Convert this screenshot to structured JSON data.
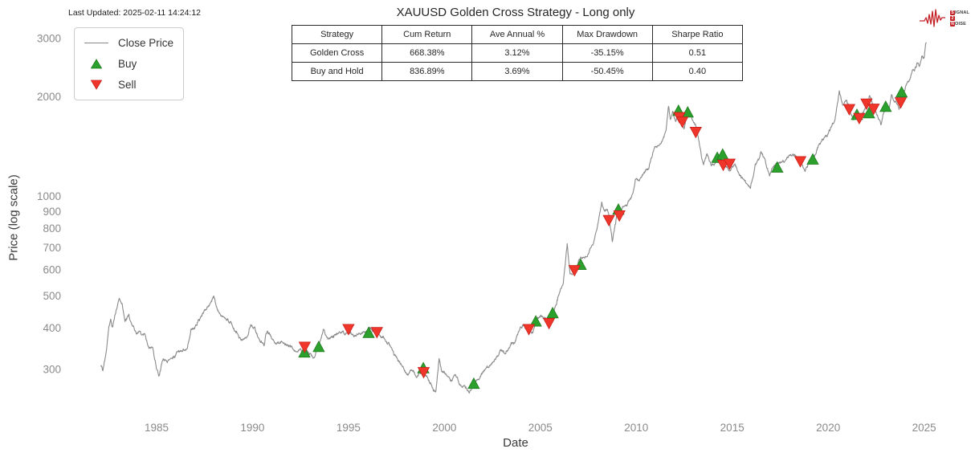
{
  "header": {
    "last_updated": "Last Updated: 2025-02-11 14:24:12",
    "title": "XAUUSD Golden Cross Strategy - Long only"
  },
  "legend": {
    "items": [
      {
        "label": "Close Price",
        "glyph": "line"
      },
      {
        "label": "Buy",
        "glyph": "triangle-up"
      },
      {
        "label": "Sell",
        "glyph": "triangle-down"
      }
    ]
  },
  "stats_table": {
    "columns": [
      "Strategy",
      "Cum Return",
      "Ave Annual %",
      "Max Drawdown",
      "Sharpe Ratio"
    ],
    "rows": [
      [
        "Golden Cross",
        "668.38%",
        "3.12%",
        "-35.15%",
        "0.51"
      ],
      [
        "Buy and Hold",
        "836.89%",
        "3.69%",
        "-50.45%",
        "0.40"
      ]
    ]
  },
  "logo": {
    "rows": [
      {
        "badge": "S",
        "rest": "IGNAL"
      },
      {
        "badge": "2",
        "rest": ""
      },
      {
        "badge": "N",
        "rest": "OISE"
      }
    ]
  },
  "colors": {
    "close_line": "#8a8a8a",
    "buy_green": "#2ca02c",
    "buy_green_edge": "#1d7a1d",
    "sell_red": "#f0352b",
    "sell_red_edge": "#c9201a",
    "tick_label": "#8a8a8a",
    "logo_red": "#c42127"
  },
  "chart_data": {
    "type": "line",
    "title": "XAUUSD Golden Cross Strategy - Long only",
    "xlabel": "Date",
    "ylabel": "Price (log scale)",
    "y_scale": "log",
    "grid": false,
    "legend_position": "upper left",
    "x_ticks": [
      1985,
      1990,
      1995,
      2000,
      2005,
      2010,
      2015,
      2020,
      2025
    ],
    "y_ticks": [
      300,
      400,
      500,
      600,
      700,
      800,
      900,
      1000,
      2000,
      3000
    ],
    "xlim": [
      1981.8,
      2026.5
    ],
    "ylim": [
      230,
      3300
    ],
    "series": [
      {
        "name": "Close Price",
        "points": [
          [
            1982.1,
            310
          ],
          [
            1982.2,
            297
          ],
          [
            1982.35,
            330
          ],
          [
            1982.5,
            400
          ],
          [
            1982.6,
            430
          ],
          [
            1982.7,
            402
          ],
          [
            1982.85,
            448
          ],
          [
            1983.05,
            497
          ],
          [
            1983.2,
            470
          ],
          [
            1983.35,
            420
          ],
          [
            1983.55,
            430
          ],
          [
            1983.75,
            405
          ],
          [
            1983.95,
            383
          ],
          [
            1984.15,
            390
          ],
          [
            1984.4,
            378
          ],
          [
            1984.6,
            347
          ],
          [
            1984.8,
            342
          ],
          [
            1985.0,
            302
          ],
          [
            1985.15,
            292
          ],
          [
            1985.35,
            322
          ],
          [
            1985.6,
            318
          ],
          [
            1985.85,
            327
          ],
          [
            1986.1,
            340
          ],
          [
            1986.35,
            342
          ],
          [
            1986.6,
            348
          ],
          [
            1986.8,
            390
          ],
          [
            1986.95,
            400
          ],
          [
            1987.2,
            420
          ],
          [
            1987.45,
            450
          ],
          [
            1987.65,
            460
          ],
          [
            1987.85,
            478
          ],
          [
            1987.98,
            496
          ],
          [
            1988.15,
            455
          ],
          [
            1988.4,
            438
          ],
          [
            1988.65,
            428
          ],
          [
            1988.9,
            415
          ],
          [
            1989.15,
            388
          ],
          [
            1989.4,
            372
          ],
          [
            1989.65,
            367
          ],
          [
            1989.9,
            405
          ],
          [
            1990.1,
            398
          ],
          [
            1990.35,
            370
          ],
          [
            1990.6,
            355
          ],
          [
            1990.75,
            388
          ],
          [
            1990.95,
            380
          ],
          [
            1991.2,
            362
          ],
          [
            1991.45,
            368
          ],
          [
            1991.7,
            358
          ],
          [
            1991.95,
            355
          ],
          [
            1992.2,
            340
          ],
          [
            1992.5,
            342
          ],
          [
            1992.72,
            350
          ],
          [
            1992.95,
            335
          ],
          [
            1993.2,
            330
          ],
          [
            1993.45,
            352
          ],
          [
            1993.7,
            392
          ],
          [
            1993.95,
            372
          ],
          [
            1994.2,
            382
          ],
          [
            1994.5,
            387
          ],
          [
            1994.8,
            384
          ],
          [
            1995.05,
            388
          ],
          [
            1995.3,
            382
          ],
          [
            1995.6,
            386
          ],
          [
            1995.9,
            388
          ],
          [
            1996.1,
            396
          ],
          [
            1996.35,
            393
          ],
          [
            1996.6,
            385
          ],
          [
            1996.9,
            368
          ],
          [
            1997.2,
            348
          ],
          [
            1997.5,
            324
          ],
          [
            1997.8,
            306
          ],
          [
            1998.05,
            292
          ],
          [
            1998.3,
            300
          ],
          [
            1998.6,
            288
          ],
          [
            1998.9,
            298
          ],
          [
            1999.1,
            285
          ],
          [
            1999.4,
            260
          ],
          [
            1999.55,
            256
          ],
          [
            1999.72,
            326
          ],
          [
            1999.85,
            300
          ],
          [
            2000.1,
            288
          ],
          [
            2000.35,
            279
          ],
          [
            2000.6,
            288
          ],
          [
            2000.9,
            268
          ],
          [
            2001.15,
            262
          ],
          [
            2001.3,
            256
          ],
          [
            2001.55,
            272
          ],
          [
            2001.8,
            278
          ],
          [
            2002.05,
            297
          ],
          [
            2002.35,
            308
          ],
          [
            2002.65,
            320
          ],
          [
            2002.95,
            342
          ],
          [
            2003.2,
            336
          ],
          [
            2003.45,
            352
          ],
          [
            2003.7,
            368
          ],
          [
            2003.95,
            398
          ],
          [
            2004.15,
            408
          ],
          [
            2004.4,
            396
          ],
          [
            2004.6,
            390
          ],
          [
            2004.8,
            425
          ],
          [
            2005.0,
            428
          ],
          [
            2005.25,
            424
          ],
          [
            2005.45,
            418
          ],
          [
            2005.65,
            440
          ],
          [
            2005.95,
            500
          ],
          [
            2006.2,
            560
          ],
          [
            2006.4,
            715
          ],
          [
            2006.55,
            585
          ],
          [
            2006.8,
            600
          ],
          [
            2007.0,
            640
          ],
          [
            2007.25,
            655
          ],
          [
            2007.5,
            665
          ],
          [
            2007.75,
            720
          ],
          [
            2007.95,
            800
          ],
          [
            2008.2,
            975
          ],
          [
            2008.35,
            900
          ],
          [
            2008.5,
            930
          ],
          [
            2008.6,
            850
          ],
          [
            2008.75,
            740
          ],
          [
            2008.85,
            800
          ],
          [
            2009.0,
            880
          ],
          [
            2009.1,
            895
          ],
          [
            2009.3,
            930
          ],
          [
            2009.5,
            940
          ],
          [
            2009.75,
            1000
          ],
          [
            2009.95,
            1120
          ],
          [
            2010.15,
            1110
          ],
          [
            2010.4,
            1180
          ],
          [
            2010.65,
            1240
          ],
          [
            2010.9,
            1380
          ],
          [
            2011.1,
            1400
          ],
          [
            2011.35,
            1480
          ],
          [
            2011.55,
            1590
          ],
          [
            2011.68,
            1890
          ],
          [
            2011.78,
            1700
          ],
          [
            2011.9,
            1780
          ],
          [
            2012.05,
            1660
          ],
          [
            2012.2,
            1780
          ],
          [
            2012.35,
            1670
          ],
          [
            2012.5,
            1600
          ],
          [
            2012.65,
            1780
          ],
          [
            2012.8,
            1740
          ],
          [
            2013.0,
            1680
          ],
          [
            2013.15,
            1590
          ],
          [
            2013.3,
            1420
          ],
          [
            2013.5,
            1230
          ],
          [
            2013.7,
            1320
          ],
          [
            2013.9,
            1250
          ],
          [
            2014.1,
            1240
          ],
          [
            2014.25,
            1310
          ],
          [
            2014.4,
            1290
          ],
          [
            2014.55,
            1260
          ],
          [
            2014.75,
            1230
          ],
          [
            2014.9,
            1210
          ],
          [
            2015.1,
            1260
          ],
          [
            2015.3,
            1180
          ],
          [
            2015.55,
            1130
          ],
          [
            2015.75,
            1100
          ],
          [
            2015.95,
            1060
          ],
          [
            2016.2,
            1240
          ],
          [
            2016.5,
            1360
          ],
          [
            2016.75,
            1260
          ],
          [
            2016.95,
            1150
          ],
          [
            2017.2,
            1240
          ],
          [
            2017.45,
            1260
          ],
          [
            2017.7,
            1290
          ],
          [
            2017.95,
            1320
          ],
          [
            2018.15,
            1340
          ],
          [
            2018.4,
            1300
          ],
          [
            2018.6,
            1270
          ],
          [
            2018.8,
            1190
          ],
          [
            2019.0,
            1290
          ],
          [
            2019.25,
            1300
          ],
          [
            2019.5,
            1420
          ],
          [
            2019.75,
            1500
          ],
          [
            2019.95,
            1520
          ],
          [
            2020.15,
            1590
          ],
          [
            2020.35,
            1720
          ],
          [
            2020.58,
            2060
          ],
          [
            2020.75,
            1900
          ],
          [
            2020.95,
            1950
          ],
          [
            2021.1,
            1840
          ],
          [
            2021.3,
            1720
          ],
          [
            2021.5,
            1790
          ],
          [
            2021.65,
            1750
          ],
          [
            2021.85,
            1800
          ],
          [
            2022.0,
            1910
          ],
          [
            2022.15,
            2030
          ],
          [
            2022.3,
            1930
          ],
          [
            2022.5,
            1800
          ],
          [
            2022.75,
            1625
          ],
          [
            2022.9,
            1780
          ],
          [
            2023.05,
            1870
          ],
          [
            2023.15,
            1820
          ],
          [
            2023.3,
            1990
          ],
          [
            2023.45,
            1940
          ],
          [
            2023.6,
            1915
          ],
          [
            2023.7,
            1830
          ],
          [
            2023.85,
            2040
          ],
          [
            2023.95,
            2090
          ],
          [
            2024.1,
            2180
          ],
          [
            2024.25,
            2250
          ],
          [
            2024.4,
            2420
          ],
          [
            2024.5,
            2390
          ],
          [
            2024.65,
            2520
          ],
          [
            2024.75,
            2480
          ],
          [
            2024.9,
            2700
          ],
          [
            2025.0,
            2650
          ],
          [
            2025.08,
            2900
          ],
          [
            2025.12,
            2917
          ]
        ]
      }
    ],
    "buy_signals": [
      [
        1992.7,
        337
      ],
      [
        1993.45,
        350
      ],
      [
        1996.05,
        386
      ],
      [
        1998.9,
        302
      ],
      [
        2001.53,
        271
      ],
      [
        2004.76,
        418
      ],
      [
        2005.64,
        443
      ],
      [
        2007.1,
        620
      ],
      [
        2009.07,
        910
      ],
      [
        2012.2,
        1810
      ],
      [
        2012.68,
        1790
      ],
      [
        2014.22,
        1305
      ],
      [
        2014.5,
        1335
      ],
      [
        2017.35,
        1220
      ],
      [
        2019.2,
        1290
      ],
      [
        2021.5,
        1760
      ],
      [
        2022.13,
        1780
      ],
      [
        2023.0,
        1862
      ],
      [
        2023.83,
        2060
      ]
    ],
    "sell_signals": [
      [
        1992.72,
        352
      ],
      [
        1995.0,
        398
      ],
      [
        1996.48,
        390
      ],
      [
        1998.92,
        295
      ],
      [
        2004.4,
        398
      ],
      [
        2005.45,
        415
      ],
      [
        2006.78,
        600
      ],
      [
        2008.57,
        850
      ],
      [
        2009.12,
        878
      ],
      [
        2012.25,
        1740
      ],
      [
        2012.4,
        1685
      ],
      [
        2013.1,
        1570
      ],
      [
        2014.53,
        1248
      ],
      [
        2014.86,
        1258
      ],
      [
        2018.55,
        1280
      ],
      [
        2021.1,
        1840
      ],
      [
        2021.62,
        1728
      ],
      [
        2022.0,
        1912
      ],
      [
        2022.37,
        1845
      ],
      [
        2023.78,
        1928
      ]
    ]
  }
}
